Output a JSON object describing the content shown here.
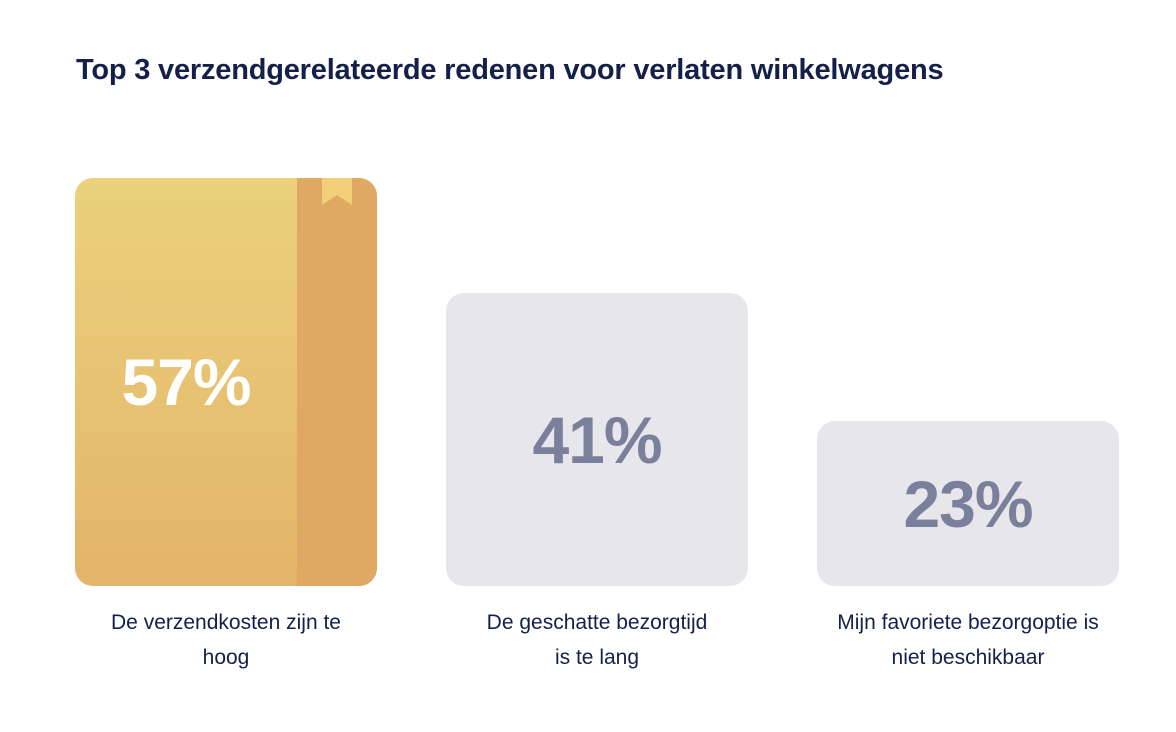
{
  "chart_data": {
    "type": "bar",
    "title": "Top 3 verzendgerelateerde redenen voor verlaten winkelwagens",
    "categories": [
      "De verzendkosten zijn te hoog",
      "De geschatte bezorgtijd is te lang",
      "Mijn favoriete bezorgoptie is niet beschikbaar"
    ],
    "category_lines": [
      [
        "De verzendkosten zijn te",
        "hoog"
      ],
      [
        "De geschatte bezorgtijd",
        "is te lang"
      ],
      [
        "Mijn favoriete bezorgoptie is",
        "niet beschikbaar"
      ]
    ],
    "values": [
      57,
      41,
      23
    ],
    "value_labels": [
      "57%",
      "41%",
      "23%"
    ],
    "unit": "%",
    "highlight_index": 0,
    "xlabel": "",
    "ylabel": "",
    "legend": "none",
    "grid": false,
    "colors": {
      "title": "#14204a",
      "highlight_top": "#ebd17c",
      "highlight_bottom": "#e3b469",
      "highlight_spine": "#e0a963",
      "bookmark": "#f0cf78",
      "plain_bar": "#e7e6eb",
      "plain_value": "#7a7f9c",
      "highlight_value": "#ffffff",
      "category_text": "#14204a"
    }
  }
}
